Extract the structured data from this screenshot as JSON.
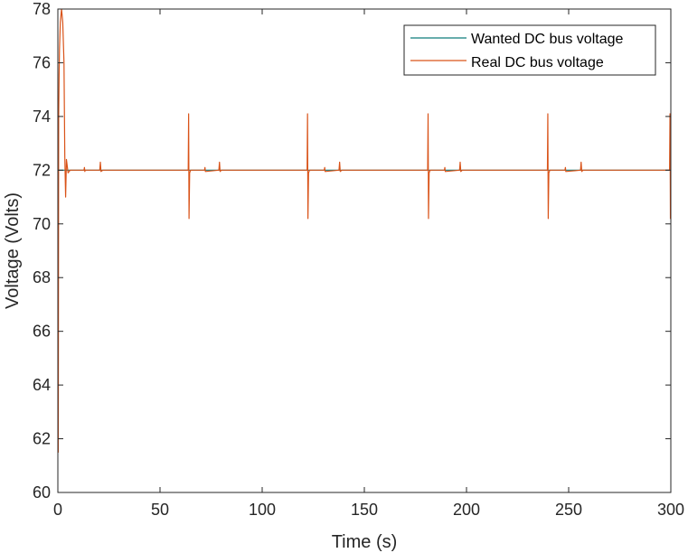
{
  "chart_data": {
    "type": "line",
    "xlabel": "Time (s)",
    "ylabel": "Voltage (Volts)",
    "xlim": [
      0,
      300
    ],
    "ylim": [
      60,
      78
    ],
    "xticks": [
      "0",
      "50",
      "100",
      "150",
      "200",
      "250",
      "300"
    ],
    "yticks": [
      "60",
      "62",
      "64",
      "66",
      "68",
      "70",
      "72",
      "74",
      "76",
      "78"
    ],
    "grid": false,
    "legend_position": "top-right",
    "series": [
      {
        "name": "Wanted DC bus voltage",
        "color": "#0e7c7b",
        "x": [
          0,
          300
        ],
        "y": [
          72,
          72
        ]
      },
      {
        "name": "Real DC bus voltage",
        "color": "#d95319",
        "x": [
          0,
          0.2,
          0.4,
          0.6,
          0.8,
          1.2,
          1.8,
          2.4,
          3.0,
          3.4,
          3.8,
          4.2,
          5.0,
          6.0,
          12.8,
          13.0,
          13.2,
          13.4,
          20.5,
          20.8,
          21.1,
          22,
          63.8,
          64.0,
          64.2,
          64.5,
          65.0,
          71.8,
          72.0,
          72.2,
          78.8,
          79.1,
          79.4,
          80,
          122.0,
          122.2,
          122.4,
          122.7,
          123.2,
          130.4,
          130.6,
          130.8,
          137.6,
          137.9,
          138.2,
          139,
          181.0,
          181.2,
          181.4,
          181.7,
          182.2,
          189.2,
          189.4,
          189.6,
          196.6,
          196.9,
          197.2,
          198,
          239.6,
          239.8,
          240.0,
          240.3,
          240.8,
          248.2,
          248.4,
          248.6,
          255.8,
          256.1,
          256.4,
          257,
          299.4,
          299.6,
          299.8,
          300
        ],
        "y": [
          72.2,
          61.5,
          74.0,
          75.5,
          76.5,
          77.5,
          78.0,
          77.5,
          76.0,
          72.5,
          71.0,
          72.4,
          71.9,
          72.0,
          72.0,
          72.1,
          71.95,
          72.0,
          72.0,
          72.3,
          71.95,
          72.0,
          72.0,
          74.1,
          70.2,
          71.9,
          72.0,
          72.0,
          72.1,
          71.95,
          72.0,
          72.3,
          71.95,
          72.0,
          72.0,
          74.1,
          70.2,
          71.9,
          72.0,
          72.0,
          72.1,
          71.95,
          72.0,
          72.3,
          71.95,
          72.0,
          72.0,
          74.1,
          70.2,
          71.9,
          72.0,
          72.0,
          72.1,
          71.95,
          72.0,
          72.3,
          71.95,
          72.0,
          72.0,
          74.1,
          70.2,
          71.9,
          72.0,
          72.0,
          72.1,
          71.95,
          72.0,
          72.3,
          71.95,
          72.0,
          72.0,
          74.1,
          70.2,
          72.0
        ]
      }
    ]
  }
}
